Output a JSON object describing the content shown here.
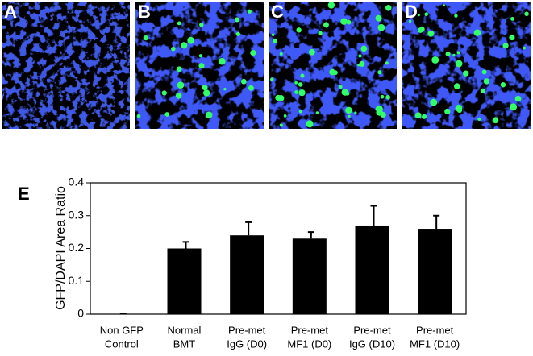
{
  "panels": [
    "A",
    "B",
    "C",
    "D"
  ],
  "chart_data": {
    "type": "bar",
    "panel_label": "E",
    "ylabel": "GFP/DAPI Area Ratio",
    "categories": [
      [
        "Non GFP",
        "Control"
      ],
      [
        "Normal",
        "BMT"
      ],
      [
        "Pre-met",
        "IgG (D0)"
      ],
      [
        "Pre-met",
        "MF1 (D0)"
      ],
      [
        "Pre-met",
        "IgG (D10)"
      ],
      [
        "Pre-met",
        "MF1 (D10)"
      ]
    ],
    "values": [
      0.001,
      0.2,
      0.24,
      0.23,
      0.27,
      0.26
    ],
    "errors": [
      0.001,
      0.02,
      0.04,
      0.02,
      0.06,
      0.04
    ],
    "color": "#000000",
    "ylim": [
      0,
      0.4
    ],
    "yticks": [
      0,
      0.1,
      0.2,
      0.3,
      0.4
    ],
    "grid": false
  }
}
